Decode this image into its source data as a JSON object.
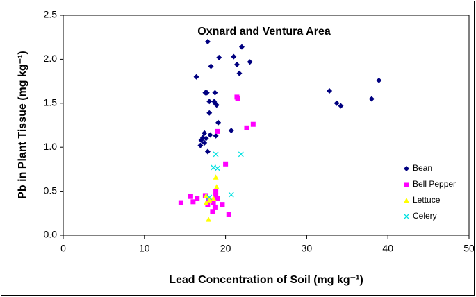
{
  "chart_data": {
    "type": "scatter",
    "title": "Oxnard and Ventura Area",
    "x_label": "Lead Concentration of Soil (mg kg⁻¹)",
    "y_label": "Pb in Plant Tissue (mg kg⁻¹)",
    "xlim": [
      0,
      50
    ],
    "xticks": [
      0,
      10,
      20,
      30,
      40,
      50
    ],
    "ylim": [
      0,
      2.5
    ],
    "yticks": [
      {
        "value": 0,
        "label": "0.0"
      },
      {
        "value": 0.5,
        "label": "0.5"
      },
      {
        "value": 1,
        "label": "1.0"
      },
      {
        "value": 1.5,
        "label": "1.5"
      },
      {
        "value": 2,
        "label": "2.0"
      },
      {
        "value": 2.5,
        "label": "2.5"
      }
    ],
    "grid": false,
    "legend": "right",
    "series": [
      {
        "name": "Bean",
        "color": "#000080",
        "marker": "diamond",
        "x": [
          17.8,
          16.4,
          18.2,
          19.2,
          22.0,
          21.0,
          23.0,
          21.4,
          21.7,
          17.5,
          17.7,
          18.7,
          18.0,
          18.6,
          18.9,
          18.0,
          19.1,
          20.7,
          17.4,
          18.8,
          18.1,
          17.2,
          17.0,
          17.6,
          17.4,
          16.9,
          17.8,
          32.8,
          33.7,
          34.2,
          38.0,
          38.9,
          18.7
        ],
        "y": [
          2.2,
          1.8,
          1.92,
          2.02,
          2.14,
          2.03,
          1.97,
          1.94,
          1.84,
          1.62,
          1.62,
          1.62,
          1.52,
          1.52,
          1.48,
          1.39,
          1.28,
          1.19,
          1.16,
          1.13,
          1.14,
          1.11,
          1.08,
          1.1,
          1.05,
          1.02,
          0.95,
          1.64,
          1.5,
          1.47,
          1.55,
          1.76,
          1.5
        ]
      },
      {
        "name": "Bell Pepper",
        "color": "#ff00ff",
        "marker": "square",
        "x": [
          21.4,
          21.5,
          23.4,
          22.6,
          19.0,
          20.0,
          18.8,
          18.8,
          17.5,
          15.7,
          16.5,
          14.5,
          16.0,
          17.9,
          18.5,
          19.0,
          17.8,
          19.6,
          18.7,
          18.4,
          20.4
        ],
        "y": [
          1.57,
          1.55,
          1.26,
          1.22,
          1.18,
          0.81,
          0.5,
          0.45,
          0.45,
          0.44,
          0.42,
          0.37,
          0.38,
          0.4,
          0.37,
          0.42,
          0.35,
          0.35,
          0.32,
          0.27,
          0.24
        ]
      },
      {
        "name": "Lettuce",
        "color": "#ffff00",
        "marker": "triangle",
        "x": [
          18.8,
          18.9,
          17.6,
          18.0,
          17.6,
          18.5,
          17.9
        ],
        "y": [
          0.66,
          0.55,
          0.45,
          0.4,
          0.37,
          0.42,
          0.18
        ]
      },
      {
        "name": "Celery",
        "color": "#00e0e0",
        "marker": "x",
        "x": [
          18.8,
          21.9,
          18.5,
          19.0,
          20.7,
          18.0
        ],
        "y": [
          0.92,
          0.92,
          0.77,
          0.76,
          0.46,
          0.43
        ]
      }
    ]
  }
}
